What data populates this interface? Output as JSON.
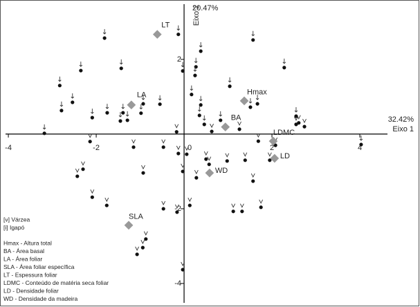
{
  "chart_data": {
    "type": "scatter",
    "x_axis_label": "Eixo 1",
    "x_axis_percent": "32.42%",
    "y_axis_label": "Eixo 2",
    "y_axis_percent": "20.47%",
    "xlim": [
      -4.19,
      5.37
    ],
    "ylim": [
      -4.63,
      3.59
    ],
    "xticks": [
      -4,
      -2,
      0,
      2,
      4
    ],
    "yticks": [
      -4,
      -2,
      2
    ],
    "series": [
      {
        "name": "[v] Várzea",
        "marker": "v",
        "color": "#111111",
        "x": [
          -0.17,
          0.63,
          1.26,
          1.69,
          2.08,
          1.95,
          2.61,
          2.74,
          2.55,
          -2.14,
          -1.15,
          -0.47,
          -0.13,
          0.06,
          0.57,
          0.5,
          0.98,
          1.39,
          -2.3,
          -2.43,
          -0.93,
          -0.03,
          1.57,
          -2.09,
          -1.76,
          -0.47,
          0.13,
          1.12,
          1.32,
          1.75,
          -0.16,
          -0.87,
          -0.94,
          -1.07,
          -0.03,
          0.28
        ],
        "y": [
          0.06,
          0.07,
          0.13,
          -0.19,
          -0.3,
          -0.7,
          0.3,
          0.2,
          0.26,
          -0.2,
          -0.35,
          -0.35,
          -0.52,
          -0.54,
          -0.81,
          -0.67,
          -0.72,
          -0.7,
          -0.94,
          -1.13,
          -1.04,
          -1.0,
          -1.26,
          -1.69,
          -1.91,
          -2.0,
          -1.91,
          -2.07,
          -2.07,
          -1.96,
          -2.09,
          -2.81,
          -3.04,
          -3.22,
          -3.63,
          -1.17
        ]
      },
      {
        "name": "[i] Igapó",
        "marker": "i",
        "color": "#111111",
        "x": [
          -1.81,
          -0.13,
          0.38,
          1.57,
          -2.35,
          -1.43,
          -2.83,
          -0.03,
          0.27,
          0.25,
          2.28,
          1.04,
          0.17,
          -2.54,
          -2.79,
          -2.09,
          -1.75,
          -1.39,
          -0.93,
          -0.55,
          -0.98,
          -1.29,
          -1.45,
          0.38,
          1.67,
          1.51,
          2.55,
          0.35,
          0.83,
          -3.18,
          0.46,
          4.03
        ],
        "y": [
          2.57,
          2.67,
          2.22,
          2.52,
          1.7,
          1.76,
          1.3,
          1.69,
          1.8,
          1.57,
          1.78,
          1.28,
          1.06,
          0.85,
          0.63,
          0.44,
          0.57,
          0.57,
          0.81,
          0.8,
          0.56,
          0.37,
          0.35,
          0.78,
          0.81,
          0.72,
          0.48,
          0.5,
          0.37,
          0.02,
          0.26,
          -0.28
        ]
      }
    ],
    "loadings": {
      "color": "#999999",
      "labels": [
        "LT",
        "LA",
        "Hmax",
        "BA",
        "LDMC",
        "LD",
        "WD",
        "SLA"
      ],
      "x": [
        -0.61,
        -1.2,
        1.37,
        0.94,
        2.03,
        2.06,
        0.58,
        -1.26
      ],
      "y": [
        2.67,
        0.78,
        0.89,
        0.19,
        -0.19,
        -0.65,
        -1.04,
        -2.44
      ]
    },
    "abbreviations": [
      "Hmax - Altura total",
      "BA - Área basal",
      "LA - Área foliar",
      "SLA - Área foliar específica",
      "LT - Espessura foliar",
      "LDMC - Conteúdo de matéria seca foliar",
      "LD - Densidade foliar",
      "WD - Densidade da madeira"
    ]
  }
}
